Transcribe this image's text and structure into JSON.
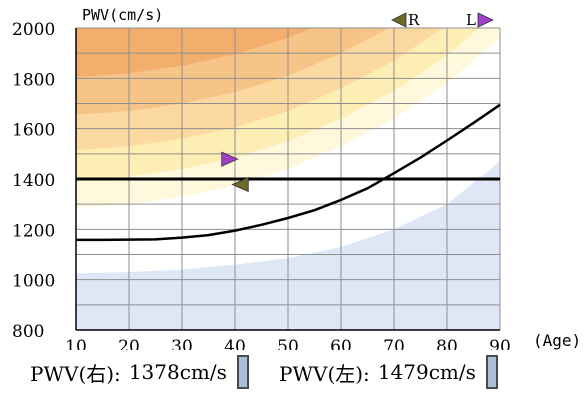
{
  "chart_data": {
    "type": "line",
    "ylabel": "PWV(cm/s)",
    "xlabel": "(Age)",
    "xlim": [
      10,
      90
    ],
    "ylim": [
      800,
      2000
    ],
    "x_ticks": [
      "10",
      "20",
      "30",
      "40",
      "50",
      "60",
      "70",
      "80",
      "90"
    ],
    "y_ticks": [
      "800",
      "1000",
      "1200",
      "1400",
      "1600",
      "1800",
      "2000"
    ],
    "grid": true,
    "series": [
      {
        "name": "",
        "x": [
          10,
          15,
          25,
          30,
          35,
          40,
          45,
          50,
          55,
          60,
          65,
          70,
          75,
          80,
          85,
          90
        ],
        "y": [
          1158,
          1158,
          1160,
          1167,
          1177,
          1195,
          1218,
          1245,
          1276,
          1317,
          1363,
          1423,
          1485,
          1553,
          1623,
          1695
        ]
      }
    ],
    "reference_line": {
      "y": 1400
    },
    "markers": [
      {
        "name": "L",
        "x": 39,
        "y": 1479,
        "direction": "right",
        "color": "#a040c8"
      },
      {
        "name": "R",
        "x": 41,
        "y": 1378,
        "direction": "left",
        "color": "#6b6a28"
      }
    ],
    "legend": {
      "placement": "top-right",
      "items": [
        {
          "label": "R",
          "color": "#6b6a28"
        },
        {
          "label": "L",
          "color": "#a040c8"
        }
      ]
    }
  },
  "readouts": {
    "right": {
      "label": "PWV(右):",
      "value": "1378cm/s"
    },
    "left": {
      "label": "PWV(左):",
      "value": "1479cm/s"
    }
  }
}
